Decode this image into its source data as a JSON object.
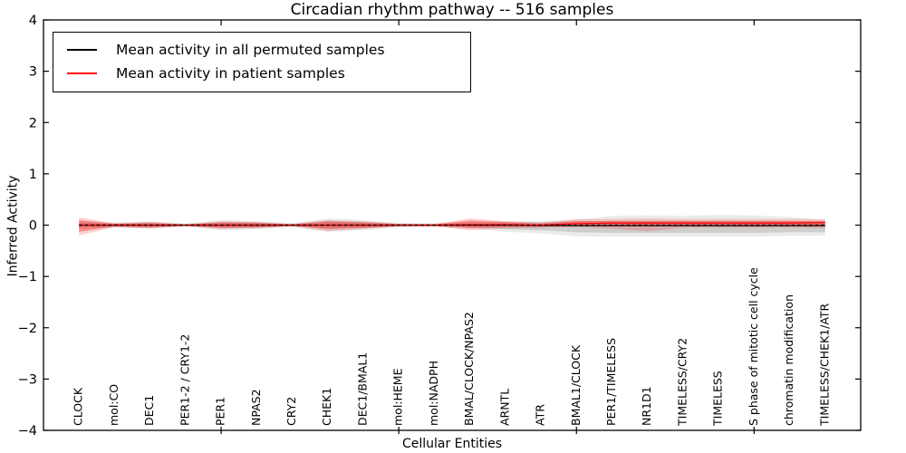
{
  "chart_data": {
    "type": "line",
    "title": "Circadian rhythm pathway -- 516 samples",
    "xlabel": "Cellular Entities",
    "ylabel": "Inferred Activity",
    "ylim": [
      -4,
      4
    ],
    "ytick_values": [
      4,
      3,
      2,
      1,
      0,
      -1,
      -2,
      -3,
      -4
    ],
    "ytick_labels": [
      "4",
      "3",
      "2",
      "1",
      "0",
      "−1",
      "−2",
      "−3",
      "−4"
    ],
    "xtick_indices": [
      4,
      9,
      14,
      19
    ],
    "grid": false,
    "legend_position": "upper left",
    "legend": [
      {
        "label": "Mean activity in all permuted samples",
        "color": "#000000"
      },
      {
        "label": "Mean activity in patient samples",
        "color": "#ff0000"
      }
    ],
    "categories": [
      "CLOCK",
      "mol:CO",
      "DEC1",
      "PER1-2 / CRY1-2",
      "PER1",
      "NPAS2",
      "CRY2",
      "CHEK1",
      "DEC1/BMAL1",
      "mol:HEME",
      "mol:NADPH",
      "BMAL/CLOCK/NPAS2",
      "ARNTL",
      "ATR",
      "BMAL1/CLOCK",
      "PER1/TIMELESS",
      "NR1D1",
      "TIMELESS/CRY2",
      "TIMELESS",
      "S phase of mitotic cell cycle",
      "chromatin modification",
      "TIMELESS/CHEK1/ATR"
    ],
    "series": [
      {
        "name": "Mean activity in all permuted samples",
        "color": "#000000",
        "style": "solid",
        "values": [
          0,
          0,
          0,
          0,
          0,
          0,
          0,
          0,
          0,
          0,
          0,
          0,
          0,
          -0.005,
          -0.01,
          -0.01,
          -0.01,
          -0.01,
          -0.01,
          -0.01,
          -0.01,
          -0.01
        ]
      },
      {
        "name": "Mean activity in patient samples",
        "color": "#ff0000",
        "style": "solid",
        "values": [
          0,
          0,
          0,
          0,
          0,
          0,
          0,
          0,
          0,
          0,
          0,
          0.01,
          0.01,
          0,
          0.03,
          0.04,
          0.04,
          0.04,
          0.04,
          0.04,
          0.04,
          0.05
        ]
      },
      {
        "name": "zero reference",
        "color": "#000000",
        "style": "dashed",
        "values": [
          0,
          0,
          0,
          0,
          0,
          0,
          0,
          0,
          0,
          0,
          0,
          0,
          0,
          0,
          0,
          0,
          0,
          0,
          0,
          0,
          0,
          0
        ]
      }
    ],
    "bands": [
      {
        "name": "permuted-outer-band",
        "color": "rgba(0,0,0,0.08)",
        "hi": [
          0.08,
          0.05,
          0.07,
          0.03,
          0.1,
          0.08,
          0.04,
          0.13,
          0.1,
          0.04,
          0.035,
          0.065,
          0.07,
          0.08,
          0.1,
          0.18,
          0.19,
          0.18,
          0.2,
          0.19,
          0.16,
          0.1
        ],
        "lo": [
          -0.08,
          -0.05,
          -0.07,
          -0.03,
          -0.1,
          -0.08,
          -0.04,
          -0.13,
          -0.1,
          -0.04,
          -0.035,
          -0.065,
          -0.13,
          -0.16,
          -0.22,
          -0.23,
          -0.22,
          -0.23,
          -0.23,
          -0.22,
          -0.21,
          -0.2
        ]
      },
      {
        "name": "permuted-inner-band",
        "color": "rgba(0,0,0,0.12)",
        "hi": [
          0.05,
          0.03,
          0.05,
          0.02,
          0.06,
          0.05,
          0.02,
          0.08,
          0.06,
          0.025,
          0.02,
          0.04,
          0.05,
          0.05,
          0.07,
          0.08,
          0.08,
          0.08,
          0.08,
          0.08,
          0.08,
          0.07
        ],
        "lo": [
          -0.05,
          -0.03,
          -0.05,
          -0.02,
          -0.06,
          -0.05,
          -0.02,
          -0.08,
          -0.06,
          -0.025,
          -0.02,
          -0.04,
          -0.08,
          -0.1,
          -0.14,
          -0.15,
          -0.15,
          -0.15,
          -0.15,
          -0.15,
          -0.14,
          -0.14
        ]
      },
      {
        "name": "patient-outer-band",
        "color": "rgba(255,0,0,0.18)",
        "hi": [
          0.15,
          0.04,
          0.065,
          0.02,
          0.075,
          0.06,
          0.025,
          0.1,
          0.075,
          0.03,
          0.025,
          0.13,
          0.08,
          0.05,
          0.12,
          0.12,
          0.13,
          0.12,
          0.12,
          0.12,
          0.12,
          0.12
        ],
        "lo": [
          -0.2,
          -0.04,
          -0.065,
          -0.02,
          -0.075,
          -0.06,
          -0.025,
          -0.12,
          -0.075,
          -0.03,
          -0.025,
          -0.1,
          -0.06,
          -0.05,
          -0.04,
          -0.07,
          -0.12,
          -0.05,
          -0.05,
          -0.05,
          -0.05,
          -0.06
        ]
      },
      {
        "name": "patient-inner-band",
        "color": "rgba(255,0,0,0.32)",
        "hi": [
          0.1,
          0.025,
          0.04,
          0.012,
          0.05,
          0.045,
          0.015,
          0.07,
          0.05,
          0.02,
          0.015,
          0.09,
          0.06,
          0.03,
          0.08,
          0.08,
          0.08,
          0.08,
          0.08,
          0.08,
          0.08,
          0.08
        ],
        "lo": [
          -0.13,
          -0.025,
          -0.04,
          -0.012,
          -0.05,
          -0.045,
          -0.015,
          -0.07,
          -0.05,
          -0.02,
          -0.015,
          -0.06,
          -0.04,
          -0.03,
          -0.015,
          -0.02,
          -0.02,
          -0.02,
          -0.02,
          -0.02,
          -0.02,
          -0.02
        ]
      }
    ]
  }
}
